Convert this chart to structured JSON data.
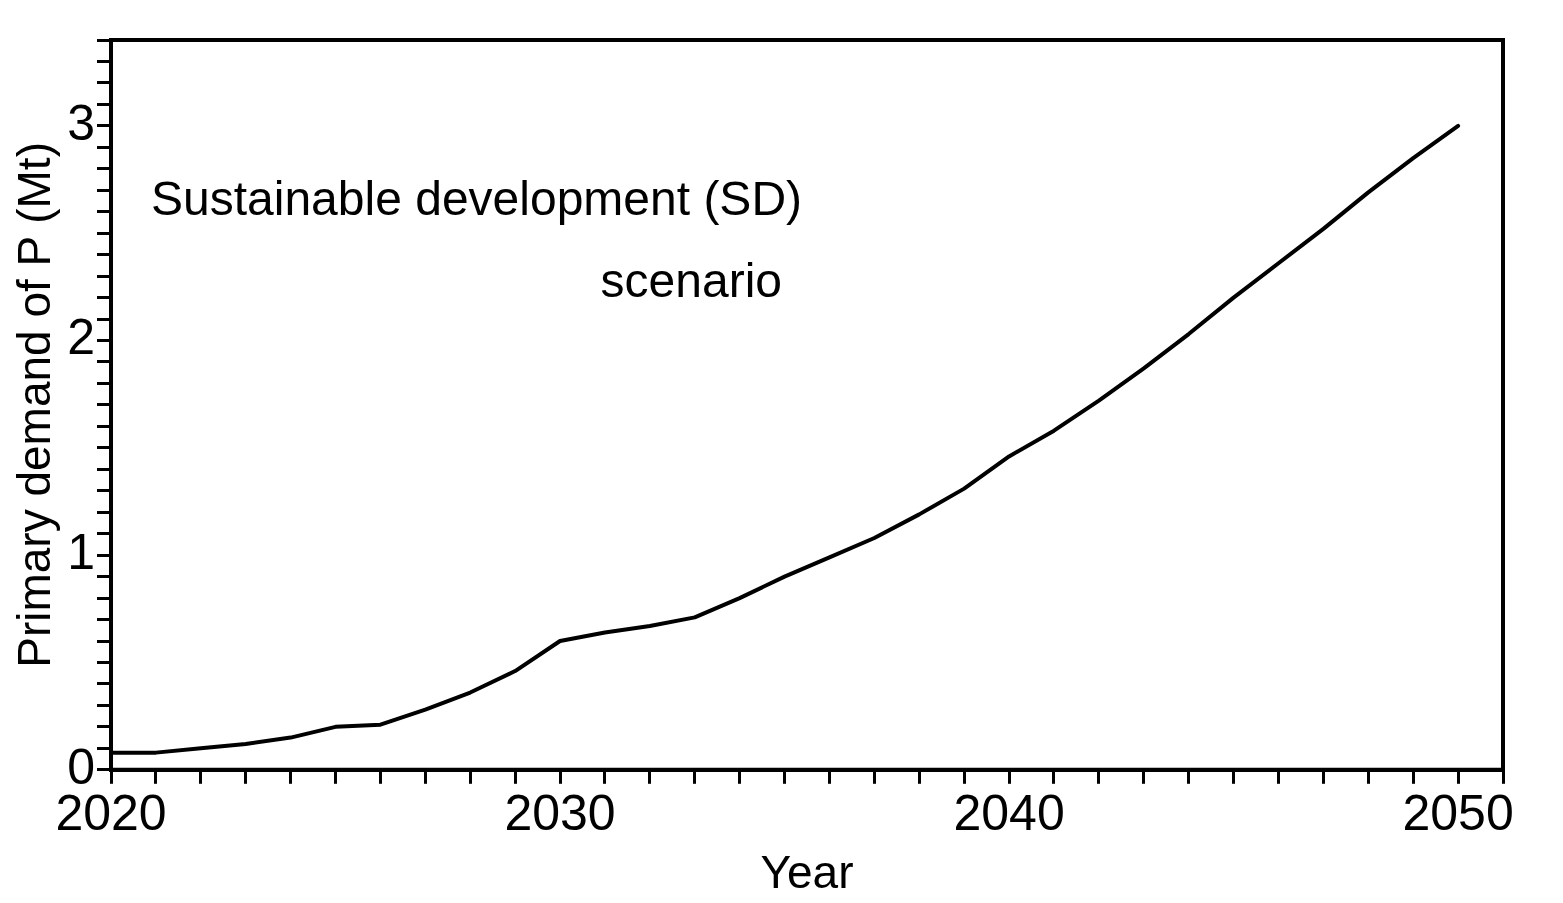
{
  "chart_data": {
    "type": "line",
    "xlabel": "Year",
    "ylabel": "Primary demand of P (Mt)",
    "annotations": [
      "Sustainable development (SD) scenario"
    ],
    "x": [
      2020,
      2021,
      2022,
      2023,
      2024,
      2025,
      2026,
      2027,
      2028,
      2029,
      2030,
      2031,
      2032,
      2033,
      2034,
      2035,
      2036,
      2037,
      2038,
      2039,
      2040,
      2041,
      2042,
      2043,
      2044,
      2045,
      2046,
      2047,
      2048,
      2049,
      2050
    ],
    "series": [
      {
        "color": "#000000",
        "values": [
          0.08,
          0.08,
          0.1,
          0.12,
          0.15,
          0.2,
          0.21,
          0.28,
          0.36,
          0.46,
          0.6,
          0.64,
          0.67,
          0.71,
          0.8,
          0.9,
          0.99,
          1.08,
          1.19,
          1.31,
          1.46,
          1.58,
          1.72,
          1.87,
          2.03,
          2.2,
          2.36,
          2.52,
          2.69,
          2.85,
          3.0
        ]
      }
    ],
    "xlim": [
      2020,
      2051
    ],
    "xticks": [
      2020,
      {
        "value": 2021,
        "label": null
      },
      {
        "value": 2022,
        "label": null
      },
      {
        "value": 2023,
        "label": null
      },
      {
        "value": 2024,
        "label": null
      },
      {
        "value": 2025,
        "label": null
      },
      {
        "value": 2026,
        "label": null
      },
      {
        "value": 2027,
        "label": null
      },
      {
        "value": 2028,
        "label": null
      },
      {
        "value": 2029,
        "label": null
      },
      2030,
      {
        "value": 2031,
        "label": null
      },
      {
        "value": 2032,
        "label": null
      },
      {
        "value": 2033,
        "label": null
      },
      {
        "value": 2034,
        "label": null
      },
      {
        "value": 2035,
        "label": null
      },
      {
        "value": 2036,
        "label": null
      },
      {
        "value": 2037,
        "label": null
      },
      {
        "value": 2038,
        "label": null
      },
      {
        "value": 2039,
        "label": null
      },
      2040,
      {
        "value": 2041,
        "label": null
      },
      {
        "value": 2042,
        "label": null
      },
      {
        "value": 2043,
        "label": null
      },
      {
        "value": 2044,
        "label": null
      },
      {
        "value": 2045,
        "label": null
      },
      {
        "value": 2046,
        "label": null
      },
      {
        "value": 2047,
        "label": null
      },
      {
        "value": 2048,
        "label": null
      },
      {
        "value": 2049,
        "label": null
      },
      2050,
      {
        "value": 2051,
        "label": null
      }
    ],
    "ylim": [
      0,
      3.4
    ],
    "yticks": [
      0,
      {
        "value": 0.1,
        "label": null
      },
      {
        "value": 0.2,
        "label": null
      },
      {
        "value": 0.3,
        "label": null
      },
      {
        "value": 0.4,
        "label": null
      },
      {
        "value": 0.5,
        "label": null
      },
      {
        "value": 0.6,
        "label": null
      },
      {
        "value": 0.7,
        "label": null
      },
      {
        "value": 0.8,
        "label": null
      },
      {
        "value": 0.9,
        "label": null
      },
      1,
      {
        "value": 1.1,
        "label": null
      },
      {
        "value": 1.2,
        "label": null
      },
      {
        "value": 1.3,
        "label": null
      },
      {
        "value": 1.4,
        "label": null
      },
      {
        "value": 1.5,
        "label": null
      },
      {
        "value": 1.6,
        "label": null
      },
      {
        "value": 1.7,
        "label": null
      },
      {
        "value": 1.8,
        "label": null
      },
      {
        "value": 1.9,
        "label": null
      },
      2,
      {
        "value": 2.1,
        "label": null
      },
      {
        "value": 2.2,
        "label": null
      },
      {
        "value": 2.3,
        "label": null
      },
      {
        "value": 2.4,
        "label": null
      },
      {
        "value": 2.5,
        "label": null
      },
      {
        "value": 2.6,
        "label": null
      },
      {
        "value": 2.7,
        "label": null
      },
      {
        "value": 2.8,
        "label": null
      },
      {
        "value": 2.9,
        "label": null
      },
      3,
      {
        "value": 3.1,
        "label": null
      },
      {
        "value": 3.2,
        "label": null
      },
      {
        "value": 3.3,
        "label": null
      },
      {
        "value": 3.4,
        "label": null
      }
    ],
    "grid": false,
    "legend": false,
    "marker": "none",
    "line_style": "solid"
  }
}
